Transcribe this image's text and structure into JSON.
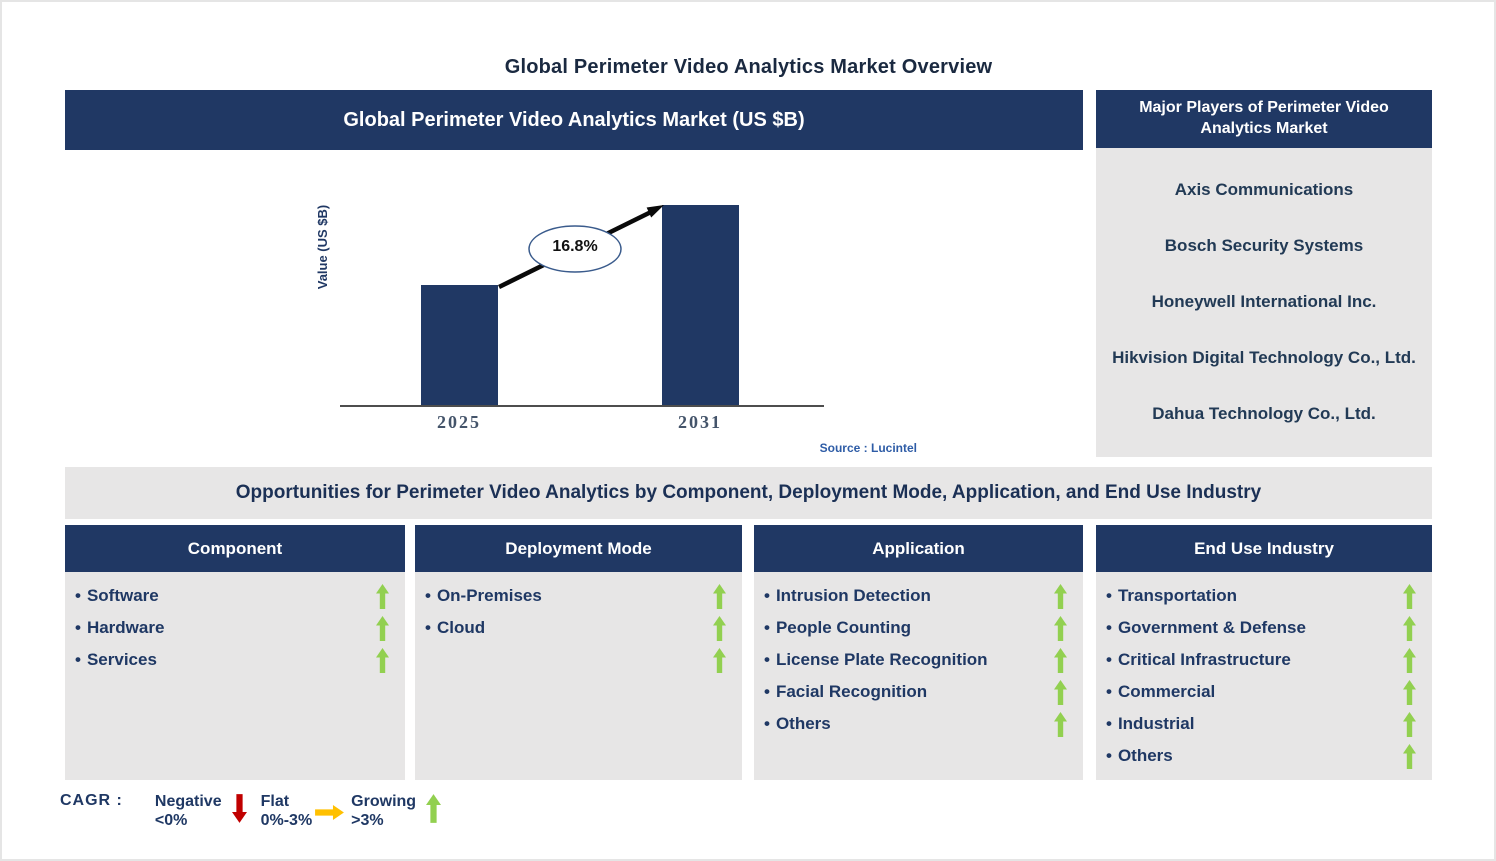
{
  "page": {
    "title": "Global Perimeter Video Analytics Market Overview"
  },
  "chart_data": {
    "type": "bar",
    "title": "Global Perimeter Video Analytics Market (US $B)",
    "categories": [
      "2025",
      "2031"
    ],
    "series": [
      {
        "name": "Value (US $B)",
        "values_relative": [
          0.6,
          1.0
        ]
      }
    ],
    "ylabel": "Value (US $B)",
    "cagr_label": "16.8%",
    "source": "Source : Lucintel",
    "legend_position": "none",
    "grid": false,
    "bar_color": "#203864"
  },
  "players_panel": {
    "header": "Major Players of Perimeter Video Analytics Market",
    "players": [
      "Axis Communications",
      "Bosch Security Systems",
      "Honeywell International Inc.",
      "Hikvision Digital Technology Co., Ltd.",
      "Dahua Technology Co., Ltd."
    ]
  },
  "opportunities": {
    "title": "Opportunities for Perimeter Video Analytics by Component, Deployment Mode, Application, and End Use Industry",
    "columns": [
      {
        "header": "Component",
        "items": [
          {
            "label": "Software",
            "trend": "up"
          },
          {
            "label": "Hardware",
            "trend": "up"
          },
          {
            "label": "Services",
            "trend": "up"
          }
        ]
      },
      {
        "header": "Deployment Mode",
        "items": [
          {
            "label": "On-Premises",
            "trend": "up"
          },
          {
            "label": "Cloud",
            "trend": "up"
          },
          {
            "label": "",
            "trend": "up"
          }
        ]
      },
      {
        "header": "Application",
        "items": [
          {
            "label": "Intrusion Detection",
            "trend": "up"
          },
          {
            "label": "People Counting",
            "trend": "up"
          },
          {
            "label": "License Plate Recognition",
            "trend": "up"
          },
          {
            "label": "Facial Recognition",
            "trend": "up"
          },
          {
            "label": "Others",
            "trend": "up"
          }
        ]
      },
      {
        "header": "End Use Industry",
        "items": [
          {
            "label": "Transportation",
            "trend": "up"
          },
          {
            "label": "Government & Defense",
            "trend": "up"
          },
          {
            "label": "Critical Infrastructure",
            "trend": "up"
          },
          {
            "label": "Commercial",
            "trend": "up"
          },
          {
            "label": "Industrial",
            "trend": "up"
          },
          {
            "label": "Others",
            "trend": "up"
          }
        ]
      }
    ]
  },
  "legend": {
    "prefix": "CAGR :",
    "items": [
      {
        "name": "Negative",
        "range": "<0%",
        "direction": "down",
        "color": "#C00000"
      },
      {
        "name": "Flat",
        "range": "0%-3%",
        "direction": "right",
        "color": "#FFC000"
      },
      {
        "name": "Growing",
        "range": ">3%",
        "direction": "up",
        "color": "#92D050"
      }
    ]
  },
  "colors": {
    "navy": "#203864",
    "panel_gray": "#E7E6E6",
    "up_green": "#92D050",
    "down_red": "#C00000",
    "flat_orange": "#FFC000",
    "source_blue": "#2E5CA6",
    "title_dark": "#1A2940",
    "band_dark": "#1B3055",
    "item_navy": "#1F3864",
    "player_dark": "#223A55",
    "tick_slate": "#44546A"
  }
}
